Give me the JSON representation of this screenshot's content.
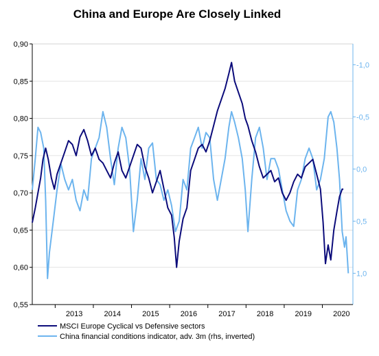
{
  "chart_data": {
    "type": "line",
    "title": "China and Europe Are Closely Linked",
    "x_tick_labels": [
      "2013",
      "2014",
      "2015",
      "2016",
      "2017",
      "2018",
      "2019",
      "2020"
    ],
    "x_range": [
      2012.4,
      2020.8
    ],
    "y_left": {
      "range": [
        0.55,
        0.9
      ],
      "ticks": [
        0.55,
        0.6,
        0.65,
        0.7,
        0.75,
        0.8,
        0.85,
        0.9
      ],
      "tick_labels": [
        "0,55",
        "0,60",
        "0,65",
        "0,70",
        "0,75",
        "0,80",
        "0,85",
        "0,90"
      ]
    },
    "y_right": {
      "inverted": true,
      "range": [
        1.3,
        -1.2
      ],
      "ticks": [
        -1.0,
        -0.5,
        0.0,
        0.5,
        1.0
      ],
      "tick_labels": [
        "-1,0",
        "-0,5",
        "0,0",
        "0,5",
        "1,0"
      ]
    },
    "grid": "horizontal",
    "legend_position": "bottom-left",
    "series": [
      {
        "name": "MSCI Europe Cyclical vs Defensive sectors",
        "axis": "left",
        "color": "#0b0b7a",
        "points": [
          [
            2012.4,
            0.66
          ],
          [
            2012.48,
            0.68
          ],
          [
            2012.55,
            0.7
          ],
          [
            2012.62,
            0.72
          ],
          [
            2012.68,
            0.745
          ],
          [
            2012.75,
            0.76
          ],
          [
            2012.82,
            0.745
          ],
          [
            2012.9,
            0.72
          ],
          [
            2012.98,
            0.705
          ],
          [
            2013.05,
            0.725
          ],
          [
            2013.15,
            0.74
          ],
          [
            2013.25,
            0.755
          ],
          [
            2013.35,
            0.77
          ],
          [
            2013.45,
            0.765
          ],
          [
            2013.55,
            0.75
          ],
          [
            2013.65,
            0.775
          ],
          [
            2013.75,
            0.785
          ],
          [
            2013.85,
            0.77
          ],
          [
            2013.95,
            0.75
          ],
          [
            2014.05,
            0.76
          ],
          [
            2014.15,
            0.745
          ],
          [
            2014.25,
            0.74
          ],
          [
            2014.35,
            0.73
          ],
          [
            2014.45,
            0.72
          ],
          [
            2014.55,
            0.74
          ],
          [
            2014.65,
            0.755
          ],
          [
            2014.75,
            0.73
          ],
          [
            2014.85,
            0.72
          ],
          [
            2014.95,
            0.735
          ],
          [
            2015.05,
            0.75
          ],
          [
            2015.15,
            0.765
          ],
          [
            2015.25,
            0.76
          ],
          [
            2015.35,
            0.735
          ],
          [
            2015.45,
            0.72
          ],
          [
            2015.55,
            0.7
          ],
          [
            2015.65,
            0.715
          ],
          [
            2015.75,
            0.73
          ],
          [
            2015.85,
            0.705
          ],
          [
            2015.95,
            0.68
          ],
          [
            2016.05,
            0.67
          ],
          [
            2016.12,
            0.64
          ],
          [
            2016.18,
            0.6
          ],
          [
            2016.25,
            0.635
          ],
          [
            2016.35,
            0.665
          ],
          [
            2016.45,
            0.68
          ],
          [
            2016.55,
            0.73
          ],
          [
            2016.65,
            0.745
          ],
          [
            2016.75,
            0.76
          ],
          [
            2016.85,
            0.765
          ],
          [
            2016.95,
            0.755
          ],
          [
            2017.05,
            0.77
          ],
          [
            2017.15,
            0.79
          ],
          [
            2017.25,
            0.81
          ],
          [
            2017.35,
            0.825
          ],
          [
            2017.45,
            0.84
          ],
          [
            2017.55,
            0.86
          ],
          [
            2017.62,
            0.875
          ],
          [
            2017.7,
            0.85
          ],
          [
            2017.8,
            0.835
          ],
          [
            2017.9,
            0.82
          ],
          [
            2017.98,
            0.8
          ],
          [
            2018.05,
            0.79
          ],
          [
            2018.15,
            0.77
          ],
          [
            2018.25,
            0.755
          ],
          [
            2018.35,
            0.735
          ],
          [
            2018.45,
            0.72
          ],
          [
            2018.55,
            0.725
          ],
          [
            2018.65,
            0.73
          ],
          [
            2018.75,
            0.715
          ],
          [
            2018.85,
            0.72
          ],
          [
            2018.95,
            0.7
          ],
          [
            2019.05,
            0.69
          ],
          [
            2019.15,
            0.7
          ],
          [
            2019.25,
            0.715
          ],
          [
            2019.35,
            0.725
          ],
          [
            2019.45,
            0.72
          ],
          [
            2019.55,
            0.735
          ],
          [
            2019.65,
            0.74
          ],
          [
            2019.75,
            0.745
          ],
          [
            2019.85,
            0.725
          ],
          [
            2019.95,
            0.705
          ],
          [
            2020.02,
            0.66
          ],
          [
            2020.08,
            0.605
          ],
          [
            2020.15,
            0.63
          ],
          [
            2020.22,
            0.61
          ],
          [
            2020.3,
            0.65
          ],
          [
            2020.38,
            0.675
          ],
          [
            2020.45,
            0.695
          ],
          [
            2020.52,
            0.705
          ],
          [
            2020.55,
            0.705
          ]
        ]
      },
      {
        "name": "China financial conditions indicator, adv. 3m (rhs, inverted)",
        "axis": "right",
        "color": "#6cb4ee",
        "points": [
          [
            2012.4,
            0.2
          ],
          [
            2012.48,
            -0.1
          ],
          [
            2012.55,
            -0.4
          ],
          [
            2012.62,
            -0.35
          ],
          [
            2012.7,
            -0.2
          ],
          [
            2012.75,
            0.3
          ],
          [
            2012.8,
            1.05
          ],
          [
            2012.85,
            0.8
          ],
          [
            2012.95,
            0.5
          ],
          [
            2013.05,
            0.2
          ],
          [
            2013.15,
            -0.05
          ],
          [
            2013.25,
            0.1
          ],
          [
            2013.35,
            0.2
          ],
          [
            2013.45,
            0.1
          ],
          [
            2013.55,
            0.3
          ],
          [
            2013.65,
            0.4
          ],
          [
            2013.75,
            0.2
          ],
          [
            2013.85,
            0.3
          ],
          [
            2013.95,
            -0.1
          ],
          [
            2014.05,
            -0.2
          ],
          [
            2014.15,
            -0.3
          ],
          [
            2014.25,
            -0.55
          ],
          [
            2014.35,
            -0.4
          ],
          [
            2014.45,
            -0.1
          ],
          [
            2014.55,
            0.15
          ],
          [
            2014.65,
            -0.2
          ],
          [
            2014.75,
            -0.4
          ],
          [
            2014.85,
            -0.3
          ],
          [
            2014.95,
            0.0
          ],
          [
            2015.05,
            0.6
          ],
          [
            2015.15,
            0.3
          ],
          [
            2015.25,
            -0.1
          ],
          [
            2015.35,
            0.1
          ],
          [
            2015.45,
            -0.2
          ],
          [
            2015.55,
            -0.25
          ],
          [
            2015.65,
            0.1
          ],
          [
            2015.75,
            0.15
          ],
          [
            2015.85,
            0.3
          ],
          [
            2015.95,
            0.2
          ],
          [
            2016.05,
            0.35
          ],
          [
            2016.15,
            0.6
          ],
          [
            2016.25,
            0.5
          ],
          [
            2016.35,
            0.1
          ],
          [
            2016.45,
            0.2
          ],
          [
            2016.55,
            -0.2
          ],
          [
            2016.65,
            -0.3
          ],
          [
            2016.75,
            -0.4
          ],
          [
            2016.85,
            -0.2
          ],
          [
            2016.95,
            -0.35
          ],
          [
            2017.05,
            -0.3
          ],
          [
            2017.15,
            0.1
          ],
          [
            2017.25,
            0.3
          ],
          [
            2017.35,
            0.1
          ],
          [
            2017.45,
            -0.1
          ],
          [
            2017.55,
            -0.4
          ],
          [
            2017.62,
            -0.55
          ],
          [
            2017.7,
            -0.45
          ],
          [
            2017.8,
            -0.3
          ],
          [
            2017.9,
            -0.1
          ],
          [
            2017.98,
            0.2
          ],
          [
            2018.05,
            0.6
          ],
          [
            2018.15,
            0.1
          ],
          [
            2018.25,
            -0.3
          ],
          [
            2018.35,
            -0.4
          ],
          [
            2018.45,
            -0.2
          ],
          [
            2018.55,
            0.1
          ],
          [
            2018.65,
            -0.1
          ],
          [
            2018.75,
            -0.1
          ],
          [
            2018.85,
            0.0
          ],
          [
            2018.95,
            0.2
          ],
          [
            2019.05,
            0.4
          ],
          [
            2019.15,
            0.5
          ],
          [
            2019.25,
            0.55
          ],
          [
            2019.35,
            0.2
          ],
          [
            2019.45,
            0.1
          ],
          [
            2019.55,
            -0.1
          ],
          [
            2019.65,
            -0.2
          ],
          [
            2019.75,
            -0.1
          ],
          [
            2019.85,
            0.2
          ],
          [
            2019.95,
            0.1
          ],
          [
            2020.05,
            -0.1
          ],
          [
            2020.15,
            -0.5
          ],
          [
            2020.22,
            -0.55
          ],
          [
            2020.3,
            -0.45
          ],
          [
            2020.38,
            -0.2
          ],
          [
            2020.45,
            0.1
          ],
          [
            2020.52,
            0.6
          ],
          [
            2020.58,
            0.75
          ],
          [
            2020.62,
            0.65
          ],
          [
            2020.68,
            1.0
          ]
        ]
      }
    ]
  }
}
